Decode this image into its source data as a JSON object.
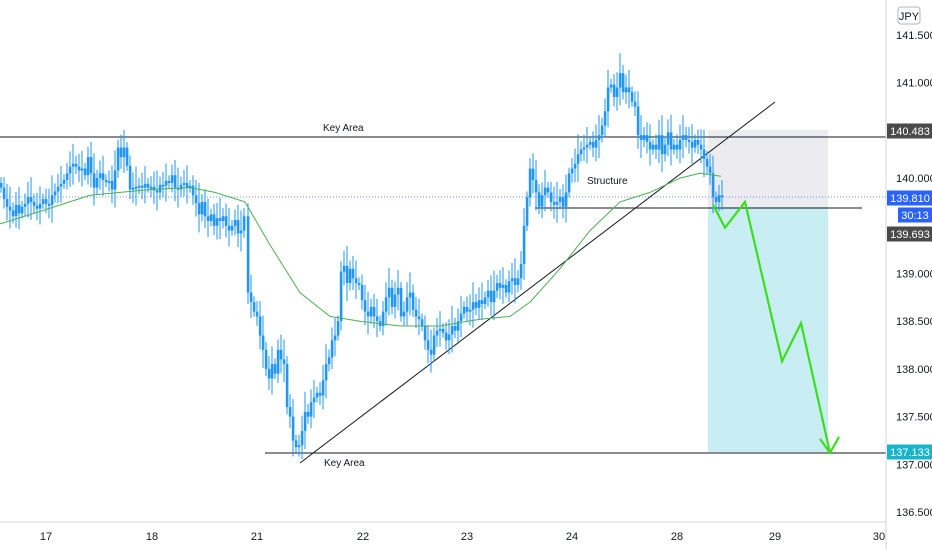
{
  "chart_data": {
    "type": "candlestick",
    "symbol_currency": "JPY",
    "y_ticks": [
      "141.500",
      "141.000",
      "140.000",
      "139.000",
      "138.500",
      "138.000",
      "137.500",
      "137.000",
      "136.500"
    ],
    "ylim": [
      136.45,
      141.75
    ],
    "x_ticks": [
      "17",
      "18",
      "21",
      "22",
      "23",
      "24",
      "28",
      "29",
      "30"
    ],
    "price_tags": [
      {
        "label": "140.483",
        "value": 140.483,
        "style": "dark"
      },
      {
        "label": "139.810",
        "value": 139.81,
        "style": "blue"
      },
      {
        "label": "30:13",
        "value": 139.72,
        "style": "blue-small"
      },
      {
        "label": "139.693",
        "value": 139.693,
        "style": "dark"
      },
      {
        "label": "137.133",
        "value": 137.133,
        "style": "cyan"
      }
    ],
    "current_price": 139.81,
    "annotations": {
      "key_area_top_label": "Key Area",
      "key_area_bottom_label": "Key Area",
      "structure_label": "Structure"
    },
    "levels": {
      "key_area_top": 140.45,
      "key_area_bottom": 137.12,
      "structure": 139.72
    },
    "short_position": {
      "entry": 139.72,
      "stop": 140.47,
      "target": 137.12
    },
    "projection_path": [
      [
        139.72,
        0
      ],
      [
        139.48,
        1
      ],
      [
        139.75,
        2
      ],
      [
        138.08,
        3
      ],
      [
        138.48,
        4
      ],
      [
        137.12,
        5
      ]
    ],
    "colors": {
      "candle": "#2196f3",
      "moving_average": "#4caf50",
      "projection": "#39e01a",
      "target_zone": "#c8eef4",
      "stop_zone": "#ececf0",
      "cyan_tag": "#18b4cc",
      "dark_tag": "#4a4a4a",
      "blue_tag": "#2962ff"
    },
    "close_path": [
      [
        0,
        139.9
      ],
      [
        3,
        139.78
      ],
      [
        6,
        139.7
      ],
      [
        9,
        139.66
      ],
      [
        12,
        139.6
      ],
      [
        15,
        139.72
      ],
      [
        18,
        139.63
      ],
      [
        21,
        139.7
      ],
      [
        24,
        139.73
      ],
      [
        27,
        139.8
      ],
      [
        30,
        139.75
      ],
      [
        33,
        139.71
      ],
      [
        36,
        139.68
      ],
      [
        39,
        139.73
      ],
      [
        42,
        139.78
      ],
      [
        45,
        139.73
      ],
      [
        48,
        139.72
      ],
      [
        51,
        139.82
      ],
      [
        54,
        139.86
      ],
      [
        57,
        139.91
      ],
      [
        60,
        139.94
      ],
      [
        63,
        139.98
      ],
      [
        66,
        140.05
      ],
      [
        69,
        140.12
      ],
      [
        72,
        140.15
      ],
      [
        75,
        140.12
      ],
      [
        78,
        140.08
      ],
      [
        81,
        140.1
      ],
      [
        84,
        140.03
      ],
      [
        87,
        140.22
      ],
      [
        90,
        140.05
      ],
      [
        93,
        139.9
      ],
      [
        96,
        140.0
      ],
      [
        99,
        140.05
      ],
      [
        102,
        139.98
      ],
      [
        105,
        139.96
      ],
      [
        108,
        139.97
      ],
      [
        111,
        139.88
      ],
      [
        114,
        140.08
      ],
      [
        117,
        140.32
      ],
      [
        120,
        140.22
      ],
      [
        123,
        140.32
      ],
      [
        126,
        140.13
      ],
      [
        129,
        139.88
      ],
      [
        132,
        139.9
      ],
      [
        135,
        139.91
      ],
      [
        138,
        139.92
      ],
      [
        141,
        139.9
      ],
      [
        144,
        139.94
      ],
      [
        147,
        139.9
      ],
      [
        150,
        139.91
      ],
      [
        153,
        139.87
      ],
      [
        156,
        139.85
      ],
      [
        159,
        139.93
      ],
      [
        162,
        139.92
      ],
      [
        165,
        139.97
      ],
      [
        168,
        139.95
      ],
      [
        171,
        140.03
      ],
      [
        174,
        139.9
      ],
      [
        177,
        139.88
      ],
      [
        180,
        139.93
      ],
      [
        183,
        139.95
      ],
      [
        186,
        139.9
      ],
      [
        189,
        139.92
      ],
      [
        192,
        139.82
      ],
      [
        195,
        139.74
      ],
      [
        198,
        139.62
      ],
      [
        201,
        139.75
      ],
      [
        204,
        139.6
      ],
      [
        207,
        139.55
      ],
      [
        210,
        139.62
      ],
      [
        213,
        139.5
      ],
      [
        216,
        139.58
      ],
      [
        219,
        139.55
      ],
      [
        222,
        139.6
      ],
      [
        225,
        139.5
      ],
      [
        228,
        139.45
      ],
      [
        231,
        139.5
      ],
      [
        234,
        139.56
      ],
      [
        237,
        139.42
      ],
      [
        240,
        139.45
      ],
      [
        243,
        139.6
      ],
      [
        247,
        138.8
      ],
      [
        250,
        138.7
      ],
      [
        253,
        138.6
      ],
      [
        256,
        138.55
      ],
      [
        259,
        138.35
      ],
      [
        262,
        138.2
      ],
      [
        265,
        138.0
      ],
      [
        268,
        137.9
      ],
      [
        271,
        138.05
      ],
      [
        274,
        137.95
      ],
      [
        277,
        138.2
      ],
      [
        280,
        138.1
      ],
      [
        283,
        138.05
      ],
      [
        286,
        137.6
      ],
      [
        289,
        137.5
      ],
      [
        292,
        137.25
      ],
      [
        295,
        137.18
      ],
      [
        298,
        137.2
      ],
      [
        301,
        137.35
      ],
      [
        304,
        137.55
      ],
      [
        307,
        137.5
      ],
      [
        310,
        137.65
      ],
      [
        313,
        137.7
      ],
      [
        316,
        137.75
      ],
      [
        319,
        137.72
      ],
      [
        322,
        137.88
      ],
      [
        325,
        138.05
      ],
      [
        328,
        138.12
      ],
      [
        331,
        138.3
      ],
      [
        334,
        138.35
      ],
      [
        337,
        138.5
      ],
      [
        340,
        139.02
      ],
      [
        343,
        139.08
      ],
      [
        346,
        138.9
      ],
      [
        349,
        139.05
      ],
      [
        352,
        138.95
      ],
      [
        355,
        138.9
      ],
      [
        358,
        138.88
      ],
      [
        361,
        138.72
      ],
      [
        364,
        138.6
      ],
      [
        367,
        138.55
      ],
      [
        370,
        138.65
      ],
      [
        373,
        138.55
      ],
      [
        376,
        138.5
      ],
      [
        379,
        138.45
      ],
      [
        382,
        138.6
      ],
      [
        385,
        138.75
      ],
      [
        388,
        138.85
      ],
      [
        391,
        138.65
      ],
      [
        394,
        138.78
      ],
      [
        397,
        138.85
      ],
      [
        400,
        138.55
      ],
      [
        403,
        138.6
      ],
      [
        406,
        138.75
      ],
      [
        409,
        138.8
      ],
      [
        412,
        138.62
      ],
      [
        415,
        138.55
      ],
      [
        418,
        138.52
      ],
      [
        421,
        138.45
      ],
      [
        424,
        138.3
      ],
      [
        427,
        138.2
      ],
      [
        430,
        138.15
      ],
      [
        433,
        138.35
      ],
      [
        436,
        138.4
      ],
      [
        439,
        138.42
      ],
      [
        442,
        138.38
      ],
      [
        445,
        138.3
      ],
      [
        448,
        138.36
      ],
      [
        451,
        138.45
      ],
      [
        454,
        138.4
      ],
      [
        457,
        138.5
      ],
      [
        460,
        138.58
      ],
      [
        463,
        138.65
      ],
      [
        466,
        138.6
      ],
      [
        469,
        138.62
      ],
      [
        472,
        138.7
      ],
      [
        475,
        138.64
      ],
      [
        478,
        138.72
      ],
      [
        481,
        138.68
      ],
      [
        484,
        138.75
      ],
      [
        487,
        138.82
      ],
      [
        490,
        138.7
      ],
      [
        493,
        138.82
      ],
      [
        496,
        138.9
      ],
      [
        499,
        138.85
      ],
      [
        502,
        138.88
      ],
      [
        505,
        138.8
      ],
      [
        508,
        138.92
      ],
      [
        511,
        138.95
      ],
      [
        514,
        138.88
      ],
      [
        517,
        138.95
      ],
      [
        520,
        139.1
      ],
      [
        523,
        139.5
      ],
      [
        526,
        139.8
      ],
      [
        529,
        140.1
      ],
      [
        532,
        139.98
      ],
      [
        535,
        139.85
      ],
      [
        538,
        139.7
      ],
      [
        541,
        139.82
      ],
      [
        544,
        139.9
      ],
      [
        547,
        139.85
      ],
      [
        550,
        139.75
      ],
      [
        553,
        139.72
      ],
      [
        556,
        139.75
      ],
      [
        559,
        139.8
      ],
      [
        562,
        139.7
      ],
      [
        565,
        139.85
      ],
      [
        568,
        140.05
      ],
      [
        571,
        140.1
      ],
      [
        574,
        140.15
      ],
      [
        577,
        140.25
      ],
      [
        580,
        140.3
      ],
      [
        583,
        140.32
      ],
      [
        586,
        140.35
      ],
      [
        589,
        140.38
      ],
      [
        592,
        140.32
      ],
      [
        595,
        140.4
      ],
      [
        598,
        140.45
      ],
      [
        601,
        140.55
      ],
      [
        604,
        140.7
      ],
      [
        607,
        140.95
      ],
      [
        610,
        140.98
      ],
      [
        613,
        140.85
      ],
      [
        616,
        140.95
      ],
      [
        619,
        141.1
      ],
      [
        622,
        140.9
      ],
      [
        625,
        140.95
      ],
      [
        628,
        140.9
      ],
      [
        631,
        140.8
      ],
      [
        634,
        140.75
      ],
      [
        637,
        140.45
      ],
      [
        640,
        140.4
      ],
      [
        643,
        140.45
      ],
      [
        646,
        140.38
      ],
      [
        649,
        140.3
      ],
      [
        652,
        140.35
      ],
      [
        655,
        140.3
      ],
      [
        658,
        140.45
      ],
      [
        661,
        140.25
      ],
      [
        664,
        140.35
      ],
      [
        667,
        140.48
      ],
      [
        670,
        140.3
      ],
      [
        673,
        140.35
      ],
      [
        676,
        140.3
      ],
      [
        679,
        140.4
      ],
      [
        682,
        140.45
      ],
      [
        685,
        140.4
      ],
      [
        688,
        140.38
      ],
      [
        691,
        140.32
      ],
      [
        694,
        140.4
      ],
      [
        697,
        140.35
      ],
      [
        700,
        140.3
      ],
      [
        703,
        140.2
      ],
      [
        706,
        140.12
      ],
      [
        709,
        140.05
      ],
      [
        712,
        139.8
      ],
      [
        715,
        139.75
      ],
      [
        718,
        139.82
      ],
      [
        721,
        139.81
      ]
    ],
    "ma_path": [
      [
        0,
        139.52
      ],
      [
        40,
        139.65
      ],
      [
        90,
        139.82
      ],
      [
        150,
        139.88
      ],
      [
        190,
        139.9
      ],
      [
        215,
        139.85
      ],
      [
        245,
        139.75
      ],
      [
        270,
        139.3
      ],
      [
        300,
        138.8
      ],
      [
        330,
        138.55
      ],
      [
        360,
        138.5
      ],
      [
        400,
        138.45
      ],
      [
        440,
        138.45
      ],
      [
        480,
        138.52
      ],
      [
        510,
        138.55
      ],
      [
        530,
        138.7
      ],
      [
        560,
        139.05
      ],
      [
        590,
        139.45
      ],
      [
        620,
        139.75
      ],
      [
        650,
        139.85
      ],
      [
        680,
        140.0
      ],
      [
        700,
        140.05
      ],
      [
        721,
        140.02
      ]
    ]
  }
}
